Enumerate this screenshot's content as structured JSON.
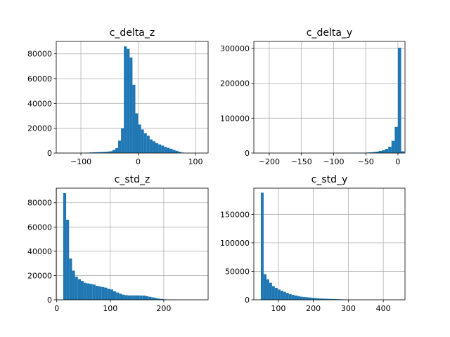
{
  "figure": {
    "bar_color": "#1f77b4",
    "grid_color": "#b0b0b0"
  },
  "chart_data": [
    {
      "type": "bar",
      "title": "c_delta_z",
      "grid": true,
      "xlim": [
        -143,
        122
      ],
      "ylim": [
        0,
        90000
      ],
      "xticks": [
        -100,
        0,
        100
      ],
      "xtick_labels": [
        "−100",
        "0",
        "100"
      ],
      "yticks": [
        0,
        20000,
        40000,
        60000,
        80000
      ],
      "ytick_labels": [
        "0",
        "20000",
        "40000",
        "60000",
        "80000"
      ],
      "bins": [
        [
          -100,
          -95,
          100
        ],
        [
          -95,
          -90,
          200
        ],
        [
          -90,
          -85,
          300
        ],
        [
          -85,
          -80,
          500
        ],
        [
          -80,
          -75,
          600
        ],
        [
          -75,
          -70,
          700
        ],
        [
          -70,
          -65,
          800
        ],
        [
          -65,
          -60,
          900
        ],
        [
          -60,
          -55,
          1000
        ],
        [
          -55,
          -50,
          1200
        ],
        [
          -50,
          -45,
          1500
        ],
        [
          -45,
          -40,
          2500
        ],
        [
          -40,
          -35,
          4000
        ],
        [
          -35,
          -30,
          10000
        ],
        [
          -30,
          -25,
          20000
        ],
        [
          -25,
          -20,
          86000
        ],
        [
          -20,
          -15,
          84000
        ],
        [
          -15,
          -10,
          77000
        ],
        [
          -10,
          -5,
          55000
        ],
        [
          -5,
          0,
          32000
        ],
        [
          0,
          5,
          23000
        ],
        [
          5,
          10,
          19000
        ],
        [
          10,
          15,
          16000
        ],
        [
          15,
          20,
          14000
        ],
        [
          20,
          25,
          11000
        ],
        [
          25,
          30,
          9500
        ],
        [
          30,
          35,
          8000
        ],
        [
          35,
          40,
          7000
        ],
        [
          40,
          45,
          6000
        ],
        [
          45,
          50,
          5000
        ],
        [
          50,
          55,
          4200
        ],
        [
          55,
          60,
          3500
        ],
        [
          60,
          65,
          2500
        ],
        [
          65,
          70,
          1800
        ],
        [
          70,
          75,
          1000
        ],
        [
          75,
          80,
          400
        ],
        [
          80,
          85,
          100
        ]
      ]
    },
    {
      "type": "bar",
      "title": "c_delta_y",
      "grid": true,
      "xlim": [
        -224,
        11
      ],
      "ylim": [
        0,
        320000
      ],
      "xticks": [
        -200,
        -150,
        -100,
        -50,
        0
      ],
      "xtick_labels": [
        "−200",
        "−150",
        "−100",
        "−50",
        "0"
      ],
      "yticks": [
        0,
        100000,
        200000,
        300000
      ],
      "ytick_labels": [
        "0",
        "100000",
        "200000",
        "300000"
      ],
      "bins": [
        [
          -200,
          -195,
          200
        ],
        [
          -195,
          -190,
          200
        ],
        [
          -190,
          -185,
          200
        ],
        [
          -185,
          -180,
          200
        ],
        [
          -180,
          -175,
          200
        ],
        [
          -175,
          -170,
          200
        ],
        [
          -170,
          -165,
          200
        ],
        [
          -165,
          -160,
          200
        ],
        [
          -160,
          -155,
          200
        ],
        [
          -155,
          -150,
          200
        ],
        [
          -150,
          -145,
          200
        ],
        [
          -145,
          -140,
          200
        ],
        [
          -140,
          -135,
          200
        ],
        [
          -135,
          -130,
          200
        ],
        [
          -130,
          -125,
          200
        ],
        [
          -125,
          -120,
          200
        ],
        [
          -120,
          -115,
          200
        ],
        [
          -115,
          -110,
          200
        ],
        [
          -110,
          -105,
          300
        ],
        [
          -105,
          -100,
          300
        ],
        [
          -100,
          -95,
          300
        ],
        [
          -95,
          -90,
          300
        ],
        [
          -90,
          -85,
          300
        ],
        [
          -85,
          -80,
          300
        ],
        [
          -80,
          -75,
          300
        ],
        [
          -75,
          -70,
          400
        ],
        [
          -70,
          -65,
          500
        ],
        [
          -65,
          -60,
          600
        ],
        [
          -60,
          -55,
          800
        ],
        [
          -55,
          -50,
          1000
        ],
        [
          -50,
          -45,
          1500
        ],
        [
          -45,
          -40,
          2000
        ],
        [
          -40,
          -35,
          3000
        ],
        [
          -35,
          -30,
          4000
        ],
        [
          -30,
          -25,
          6000
        ],
        [
          -25,
          -20,
          8000
        ],
        [
          -20,
          -15,
          12000
        ],
        [
          -15,
          -10,
          18000
        ],
        [
          -10,
          -5,
          35000
        ],
        [
          -5,
          0,
          75000
        ],
        [
          0,
          5,
          302000
        ],
        [
          5,
          10,
          5000
        ]
      ]
    },
    {
      "type": "bar",
      "title": "c_std_z",
      "grid": true,
      "xlim": [
        -1,
        283
      ],
      "ylim": [
        0,
        92000
      ],
      "xticks": [
        0,
        100,
        200
      ],
      "xtick_labels": [
        "0",
        "100",
        "200"
      ],
      "yticks": [
        0,
        20000,
        40000,
        60000,
        80000
      ],
      "ytick_labels": [
        "0",
        "20000",
        "40000",
        "60000",
        "80000"
      ],
      "bins": [
        [
          12,
          17.5,
          88000
        ],
        [
          17.5,
          23,
          66000
        ],
        [
          23,
          28.5,
          34000
        ],
        [
          28.5,
          34,
          24000
        ],
        [
          34,
          39.5,
          19000
        ],
        [
          39.5,
          45,
          17000
        ],
        [
          45,
          50.5,
          15500
        ],
        [
          50.5,
          56,
          14000
        ],
        [
          56,
          61.5,
          13500
        ],
        [
          61.5,
          67,
          13000
        ],
        [
          67,
          72.5,
          12500
        ],
        [
          72.5,
          78,
          11500
        ],
        [
          78,
          83.5,
          11000
        ],
        [
          83.5,
          89,
          10500
        ],
        [
          89,
          94.5,
          10000
        ],
        [
          94.5,
          100,
          9000
        ],
        [
          100,
          105.5,
          8500
        ],
        [
          105.5,
          111,
          7000
        ],
        [
          111,
          116.5,
          6000
        ],
        [
          116.5,
          122,
          5000
        ],
        [
          122,
          127.5,
          4200
        ],
        [
          127.5,
          133,
          3800
        ],
        [
          133,
          138.5,
          3600
        ],
        [
          138.5,
          144,
          3600
        ],
        [
          144,
          149.5,
          3600
        ],
        [
          149.5,
          155,
          3600
        ],
        [
          155,
          160.5,
          3500
        ],
        [
          160.5,
          166,
          3500
        ],
        [
          166,
          171.5,
          3000
        ],
        [
          171.5,
          177,
          2500
        ],
        [
          177,
          182.5,
          2000
        ],
        [
          182.5,
          188,
          1500
        ],
        [
          188,
          193.5,
          1000
        ],
        [
          193.5,
          199,
          700
        ],
        [
          199,
          204.5,
          400
        ],
        [
          204.5,
          210,
          200
        ],
        [
          210,
          215.5,
          100
        ],
        [
          215.5,
          221,
          100
        ],
        [
          221,
          226.5,
          50
        ],
        [
          226.5,
          232,
          50
        ],
        [
          232,
          237.5,
          50
        ],
        [
          237.5,
          243,
          50
        ]
      ]
    },
    {
      "type": "bar",
      "title": "c_std_y",
      "grid": true,
      "xlim": [
        30,
        462
      ],
      "ylim": [
        0,
        196000
      ],
      "xticks": [
        100,
        200,
        300,
        400
      ],
      "xtick_labels": [
        "100",
        "200",
        "300",
        "400"
      ],
      "yticks": [
        0,
        50000,
        100000,
        150000
      ],
      "ytick_labels": [
        "0",
        "50000",
        "100000",
        "150000"
      ],
      "bins": [
        [
          50,
          58,
          188000
        ],
        [
          58,
          66,
          45000
        ],
        [
          66,
          74,
          36000
        ],
        [
          74,
          82,
          30000
        ],
        [
          82,
          90,
          24000
        ],
        [
          90,
          98,
          21000
        ],
        [
          98,
          106,
          18000
        ],
        [
          106,
          114,
          16000
        ],
        [
          114,
          122,
          14000
        ],
        [
          122,
          130,
          12000
        ],
        [
          130,
          138,
          10000
        ],
        [
          138,
          146,
          8500
        ],
        [
          146,
          154,
          7500
        ],
        [
          154,
          162,
          6500
        ],
        [
          162,
          170,
          5500
        ],
        [
          170,
          178,
          5000
        ],
        [
          178,
          186,
          4500
        ],
        [
          186,
          194,
          4000
        ],
        [
          194,
          202,
          3500
        ],
        [
          202,
          210,
          3000
        ],
        [
          210,
          218,
          2500
        ],
        [
          218,
          226,
          2200
        ],
        [
          226,
          234,
          2000
        ],
        [
          234,
          242,
          1800
        ],
        [
          242,
          250,
          1600
        ],
        [
          250,
          258,
          1500
        ],
        [
          258,
          266,
          1300
        ],
        [
          266,
          274,
          1100
        ],
        [
          274,
          282,
          900
        ],
        [
          282,
          290,
          700
        ],
        [
          290,
          298,
          500
        ],
        [
          298,
          306,
          300
        ],
        [
          306,
          314,
          200
        ],
        [
          314,
          322,
          150
        ],
        [
          322,
          330,
          100
        ],
        [
          330,
          338,
          80
        ],
        [
          338,
          346,
          60
        ],
        [
          346,
          354,
          50
        ]
      ]
    }
  ]
}
